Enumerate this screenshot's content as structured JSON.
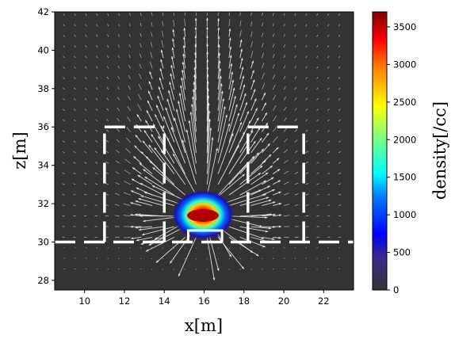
{
  "chart_data": {
    "type": "heatmap",
    "xlabel": "x[m]",
    "ylabel": "z[m]",
    "colorbar_label": "density[/cc]",
    "xlim": [
      8.5,
      23.5
    ],
    "ylim": [
      27.5,
      42
    ],
    "x_ticks": [
      10,
      12,
      14,
      16,
      18,
      20,
      22
    ],
    "y_ticks": [
      28,
      30,
      32,
      34,
      36,
      38,
      40,
      42
    ],
    "colorbar_range": [
      0,
      3700
    ],
    "colorbar_ticks": [
      0,
      500,
      1000,
      1500,
      2000,
      2500,
      3000,
      3500
    ],
    "colormap": "jet (dark gray at zero)",
    "background_color": "#333333",
    "density_peak": {
      "x": 16.0,
      "z": 31.4,
      "value": 3700
    },
    "density_extent": {
      "x": [
        14.7,
        17.3
      ],
      "z": [
        30.5,
        33.5
      ]
    },
    "velocity_field": "white arrows radiating outward and upward from the dense region",
    "structure_outline": {
      "style": "white dashed lines",
      "ground_line_z": 30,
      "left_block": {
        "x": [
          11,
          14
        ],
        "z": [
          30,
          36
        ]
      },
      "right_block": {
        "x": [
          18.2,
          21
        ],
        "z": [
          30,
          36
        ]
      },
      "center_notch": {
        "x": [
          15.2,
          16.9
        ],
        "z": [
          30,
          30.6
        ]
      }
    }
  }
}
